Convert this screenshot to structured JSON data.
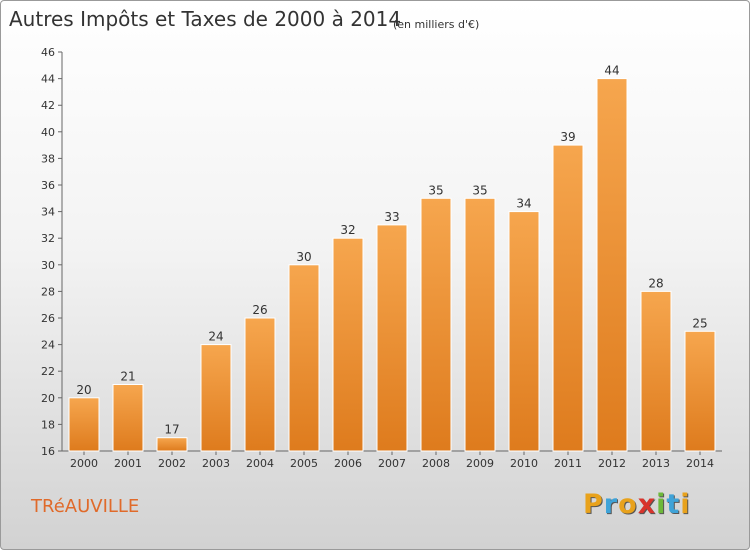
{
  "chart_data": {
    "type": "bar",
    "title": "Autres Impôts et Taxes de 2000 à 2014",
    "subtitle": "(en milliers d'€)",
    "categories": [
      "2000",
      "2001",
      "2002",
      "2003",
      "2004",
      "2005",
      "2006",
      "2007",
      "2008",
      "2009",
      "2010",
      "2011",
      "2012",
      "2013",
      "2014"
    ],
    "values": [
      20,
      21,
      17,
      24,
      26,
      30,
      32,
      33,
      35,
      35,
      34,
      39,
      44,
      28,
      25
    ],
    "ylim": [
      16,
      46
    ],
    "yticks": [
      16,
      18,
      20,
      22,
      24,
      26,
      28,
      30,
      32,
      34,
      36,
      38,
      40,
      42,
      44,
      46
    ],
    "grid": false,
    "bar_color": "#f08a2c"
  },
  "footer": {
    "town": "TRéAUVILLE",
    "brand": [
      "P",
      "r",
      "o",
      "x",
      "i",
      "t",
      "i"
    ],
    "brand_colors": [
      "#e8a21c",
      "#3fa3d8",
      "#e8a21c",
      "#d8342c",
      "#6cb83a",
      "#3fa3d8",
      "#e8a21c"
    ]
  }
}
